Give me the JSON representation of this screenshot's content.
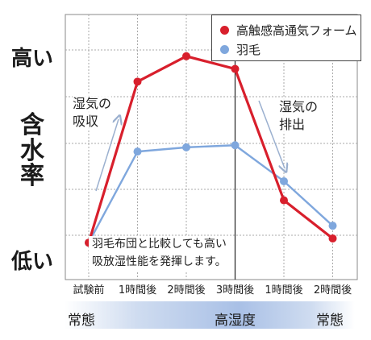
{
  "chart_data": {
    "type": "line",
    "categories": [
      "試験前",
      "1時間後",
      "2時間後",
      "3時間後",
      "1時間後",
      "2時間後"
    ],
    "series": [
      {
        "name": "高触感高通気フォーム",
        "values": [
          6,
          82,
          94,
          88,
          26,
          8
        ],
        "color": "#d81f2c"
      },
      {
        "name": "羽毛",
        "values": [
          6,
          49,
          51,
          52,
          35,
          14
        ],
        "color": "#7fa7dd"
      }
    ],
    "ylim": [
      0,
      100
    ],
    "ylabel": "含水率",
    "y_high_label": "高い",
    "y_low_label": "低い",
    "grid": true,
    "divider_after_index": 3,
    "legend_position": "top-right"
  },
  "annotations": {
    "absorb": [
      "湿気の",
      "吸収"
    ],
    "release": [
      "湿気の",
      "排出"
    ],
    "note": [
      "羽毛布団と比較しても高い",
      "吸放湿性能を発揮します。"
    ]
  },
  "band": {
    "left": "常態",
    "middle": "高湿度",
    "right": "常態"
  }
}
